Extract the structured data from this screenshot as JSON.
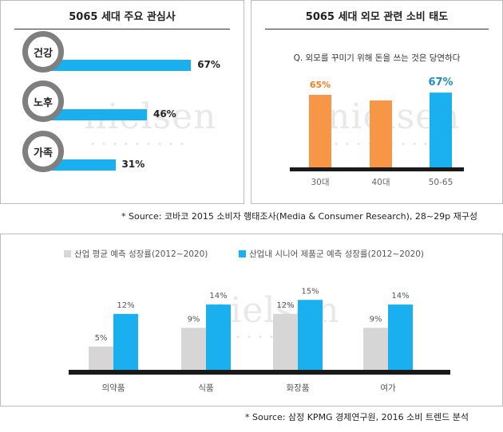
{
  "colors": {
    "accent_blue": "#1ab0ef",
    "orange": "#f79646",
    "gray_bar": "#d6d6d6",
    "circle_gray": "#7f7f7f",
    "axis": "#1a1a1a"
  },
  "watermark": "nielsen",
  "panel1": {
    "title": "5065 세대 주요 관심사"
  },
  "panel2": {
    "title": "5065 세대 외모 관련 소비 태도"
  },
  "source1": "* Source: 코바코 2015 소비자 행태조사(Media & Consumer Research), 28~29p 재구성",
  "source2": "* Source: 삼정 KPMG 경제연구원, 2016 소비 트렌드 분석",
  "chart_data": [
    {
      "type": "bar",
      "orientation": "horizontal",
      "title": "5065 세대 주요 관심사",
      "categories": [
        "건강",
        "노후",
        "가족"
      ],
      "values": [
        67,
        46,
        31
      ],
      "labels": [
        "67%",
        "46%",
        "31%"
      ],
      "xlim": [
        0,
        100
      ]
    },
    {
      "type": "bar",
      "title": "5065 세대 외모 관련 소비 태도",
      "subtitle": "Q. 외모를 꾸미기 위해 돈을 쓰는 것은 당연하다",
      "categories": [
        "30대",
        "40대",
        "50-65"
      ],
      "values": [
        65,
        60,
        67
      ],
      "labels": [
        "65%",
        "",
        "67%"
      ],
      "colors": [
        "#f79646",
        "#f79646",
        "#1ab0ef"
      ],
      "ylim": [
        0,
        100
      ]
    },
    {
      "type": "bar",
      "categories": [
        "의약품",
        "식품",
        "화장품",
        "여가"
      ],
      "series": [
        {
          "name": "산업 평균 예측 성장률(2012~2020)",
          "values": [
            5,
            9,
            12,
            9
          ],
          "labels": [
            "5%",
            "9%",
            "12%",
            "9%"
          ],
          "color": "#d6d6d6"
        },
        {
          "name": "산업내 시니어 제품군 예측 성장률(2012~2020)",
          "values": [
            12,
            14,
            15,
            14
          ],
          "labels": [
            "12%",
            "14%",
            "15%",
            "14%"
          ],
          "color": "#1ab0ef"
        }
      ],
      "legend": "top-left",
      "ylim": [
        0,
        20
      ]
    }
  ]
}
